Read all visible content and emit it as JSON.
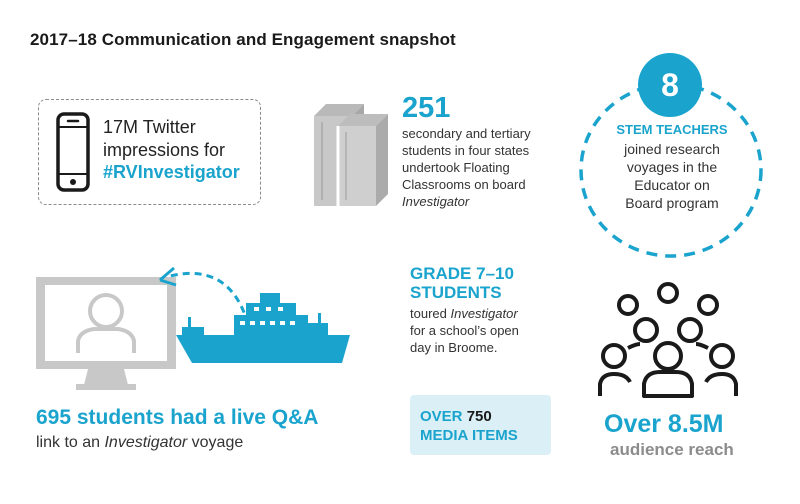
{
  "title": "2017–18 Communication and Engagement snapshot",
  "twitter": {
    "line1": "17M Twitter",
    "line2": "impressions for",
    "hashtag": "#RVInvestigator"
  },
  "students": {
    "number": "251",
    "line1": "secondary and tertiary",
    "line2": "students in four states",
    "line3": "undertook Floating",
    "line4": "Classrooms on board",
    "line5_italic": "Investigator"
  },
  "stem": {
    "number": "8",
    "heading": "STEM TEACHERS",
    "line1": "joined research",
    "line2": "voyages in the",
    "line3": "Educator on",
    "line4": "Board program"
  },
  "qa": {
    "heading": "695 students had a live Q&A",
    "text_before": "link to an ",
    "text_italic": "Investigator",
    "text_after": " voyage"
  },
  "grade": {
    "heading_line1": "GRADE 7–10",
    "heading_line2": "STUDENTS",
    "line1_before": "toured ",
    "line1_italic": "Investigator",
    "line2": "for a school’s open",
    "line3": "day in Broome."
  },
  "media": {
    "prefix": "OVER",
    "number": "750",
    "line2": "MEDIA ITEMS"
  },
  "audience": {
    "heading": "Over 8.5M",
    "sub": "audience reach"
  },
  "icons": [
    "phone-icon",
    "books-icon",
    "computer-user-icon",
    "ship-icon",
    "people-group-icon"
  ],
  "colors": {
    "accent": "#1aa4cd",
    "icon_gray": "#c8c8c8",
    "dark": "#1a1a1a"
  }
}
